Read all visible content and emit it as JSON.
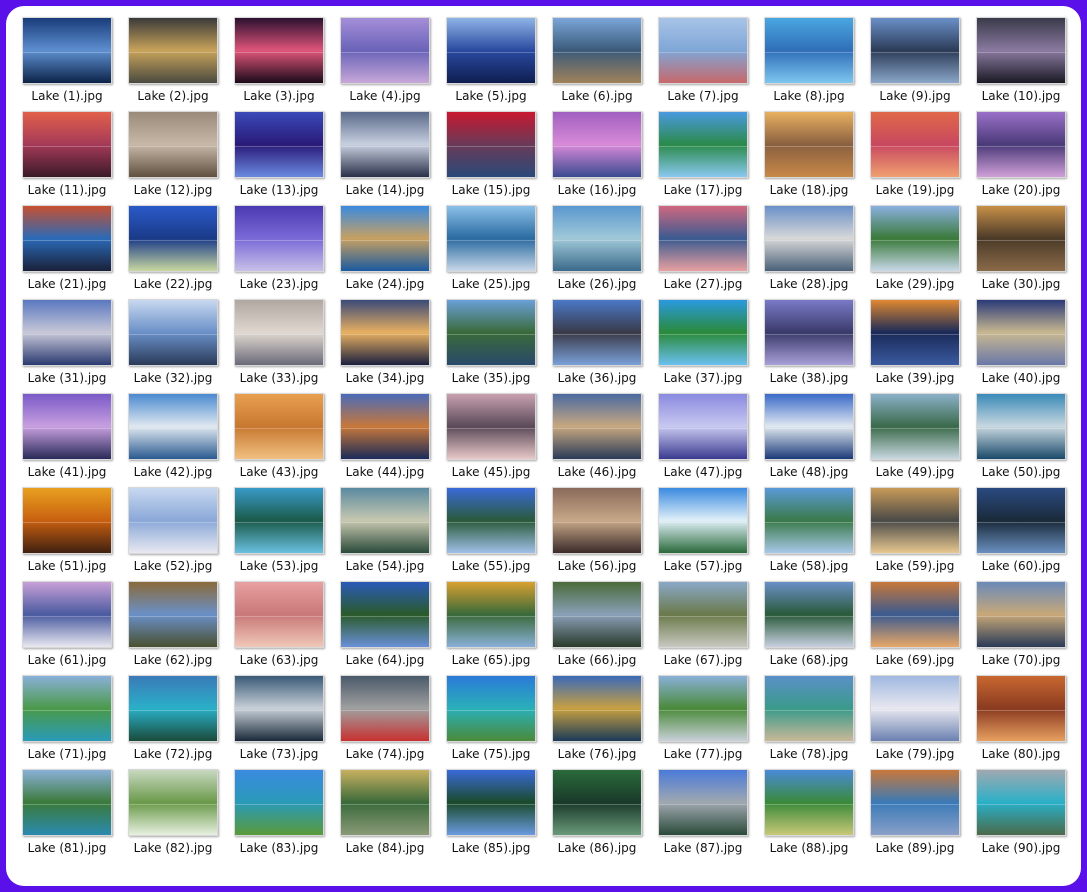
{
  "files": [
    {
      "name": "Lake (1).jpg",
      "colors": [
        "#1a3c7a",
        "#5d8fd0",
        "#0c2348"
      ]
    },
    {
      "name": "Lake (2).jpg",
      "colors": [
        "#3a3a3a",
        "#c8a35a",
        "#4a4a40"
      ]
    },
    {
      "name": "Lake (3).jpg",
      "colors": [
        "#2b1030",
        "#e0557a",
        "#1a0a18"
      ]
    },
    {
      "name": "Lake (4).jpg",
      "colors": [
        "#a58ed8",
        "#6a63b8",
        "#c7a7d8"
      ]
    },
    {
      "name": "Lake (5).jpg",
      "colors": [
        "#8fb4e6",
        "#2a4aa0",
        "#0e1e50"
      ]
    },
    {
      "name": "Lake (6).jpg",
      "colors": [
        "#7aa6d8",
        "#3b5a7a",
        "#a0825a"
      ]
    },
    {
      "name": "Lake (7).jpg",
      "colors": [
        "#a8c4e8",
        "#7fa6d6",
        "#c8686a"
      ]
    },
    {
      "name": "Lake (8).jpg",
      "colors": [
        "#4aa6e0",
        "#2f6fb8",
        "#7ec6f0"
      ]
    },
    {
      "name": "Lake (9).jpg",
      "colors": [
        "#6a8fc8",
        "#2c3c58",
        "#8aa6c8"
      ]
    },
    {
      "name": "Lake (10).jpg",
      "colors": [
        "#3a3a4a",
        "#8a7aa0",
        "#1a1a24"
      ]
    },
    {
      "name": "Lake (11).jpg",
      "colors": [
        "#e2604a",
        "#a53a58",
        "#3a1a28"
      ]
    },
    {
      "name": "Lake (12).jpg",
      "colors": [
        "#9a8a7a",
        "#c8b8a8",
        "#605040"
      ]
    },
    {
      "name": "Lake (13).jpg",
      "colors": [
        "#3a4ab8",
        "#2a1a78",
        "#6a8ae0"
      ]
    },
    {
      "name": "Lake (14).jpg",
      "colors": [
        "#5a6a8a",
        "#c8d0e0",
        "#2a3048"
      ]
    },
    {
      "name": "Lake (15).jpg",
      "colors": [
        "#c81830",
        "#6a3a58",
        "#2a4a78"
      ]
    },
    {
      "name": "Lake (16).jpg",
      "colors": [
        "#a060c0",
        "#d88ad8",
        "#3a4a90"
      ]
    },
    {
      "name": "Lake (17).jpg",
      "colors": [
        "#4a9ae0",
        "#2a8a4a",
        "#8ac8f0"
      ]
    },
    {
      "name": "Lake (18).jpg",
      "colors": [
        "#e8b060",
        "#8a6040",
        "#c88848"
      ]
    },
    {
      "name": "Lake (19).jpg",
      "colors": [
        "#e06848",
        "#c84860",
        "#f0a070"
      ]
    },
    {
      "name": "Lake (20).jpg",
      "colors": [
        "#9a70c8",
        "#4a3a78",
        "#d0a0d8"
      ]
    },
    {
      "name": "Lake (21).jpg",
      "colors": [
        "#c85030",
        "#2a6ab8",
        "#1a2038"
      ]
    },
    {
      "name": "Lake (22).jpg",
      "colors": [
        "#2a5ac8",
        "#1a3a88",
        "#c8d8a0"
      ]
    },
    {
      "name": "Lake (23).jpg",
      "colors": [
        "#4a3ab0",
        "#7a6ad8",
        "#c8c0e8"
      ]
    },
    {
      "name": "Lake (24).jpg",
      "colors": [
        "#3a8ae0",
        "#c8a060",
        "#1a5aa0"
      ]
    },
    {
      "name": "Lake (25).jpg",
      "colors": [
        "#8ac0e8",
        "#2a6aa0",
        "#c8d8e8"
      ]
    },
    {
      "name": "Lake (26).jpg",
      "colors": [
        "#5a98d0",
        "#a0c8d8",
        "#3a6a8a"
      ]
    },
    {
      "name": "Lake (27).jpg",
      "colors": [
        "#d06880",
        "#3a5a90",
        "#e8a0a0"
      ]
    },
    {
      "name": "Lake (28).jpg",
      "colors": [
        "#6a90c8",
        "#d8d8d8",
        "#4a6078"
      ]
    },
    {
      "name": "Lake (29).jpg",
      "colors": [
        "#8ab0e0",
        "#3a7a3a",
        "#c8d8e8"
      ]
    },
    {
      "name": "Lake (30).jpg",
      "colors": [
        "#c89048",
        "#4a3a28",
        "#8a6a48"
      ]
    },
    {
      "name": "Lake (31).jpg",
      "colors": [
        "#5a78c0",
        "#c8c8d8",
        "#2a3a70"
      ]
    },
    {
      "name": "Lake (32).jpg",
      "colors": [
        "#c8d8f0",
        "#6a90c8",
        "#2a3a58"
      ]
    },
    {
      "name": "Lake (33).jpg",
      "colors": [
        "#b0a8a0",
        "#e0d8d0",
        "#6a6a78"
      ]
    },
    {
      "name": "Lake (34).jpg",
      "colors": [
        "#3a4a78",
        "#e8b060",
        "#1a2040"
      ]
    },
    {
      "name": "Lake (35).jpg",
      "colors": [
        "#6aa0d8",
        "#3a6a3a",
        "#2a4a6a"
      ]
    },
    {
      "name": "Lake (36).jpg",
      "colors": [
        "#4a78c8",
        "#3a3a48",
        "#7aa0d8"
      ]
    },
    {
      "name": "Lake (37).jpg",
      "colors": [
        "#2a9ae0",
        "#2a8a3a",
        "#6ac0f0"
      ]
    },
    {
      "name": "Lake (38).jpg",
      "colors": [
        "#7a7ac8",
        "#3a3a6a",
        "#a8a0d8"
      ]
    },
    {
      "name": "Lake (39).jpg",
      "colors": [
        "#e08830",
        "#1a2a58",
        "#3a5aa0"
      ]
    },
    {
      "name": "Lake (40).jpg",
      "colors": [
        "#2a3a78",
        "#c8b890",
        "#6a78a8"
      ]
    },
    {
      "name": "Lake (41).jpg",
      "colors": [
        "#7a5ac8",
        "#c8a0e0",
        "#2a2a58"
      ]
    },
    {
      "name": "Lake (42).jpg",
      "colors": [
        "#4a8ad0",
        "#e0e8f0",
        "#2a5a90"
      ]
    },
    {
      "name": "Lake (43).jpg",
      "colors": [
        "#e8a050",
        "#c87830",
        "#f0c080"
      ]
    },
    {
      "name": "Lake (44).jpg",
      "colors": [
        "#4a6ab8",
        "#c8783a",
        "#1a2a58"
      ]
    },
    {
      "name": "Lake (45).jpg",
      "colors": [
        "#c8a0b0",
        "#5a4a58",
        "#e8c8c8"
      ]
    },
    {
      "name": "Lake (46).jpg",
      "colors": [
        "#4a6aa0",
        "#c8a880",
        "#2a3a58"
      ]
    },
    {
      "name": "Lake (47).jpg",
      "colors": [
        "#8a8ae0",
        "#c8c8f0",
        "#3a3a90"
      ]
    },
    {
      "name": "Lake (48).jpg",
      "colors": [
        "#3a6ac8",
        "#e0e8f0",
        "#1a3a78"
      ]
    },
    {
      "name": "Lake (49).jpg",
      "colors": [
        "#8ab0c8",
        "#3a6a4a",
        "#c8d8e0"
      ]
    },
    {
      "name": "Lake (50).jpg",
      "colors": [
        "#3a8ab8",
        "#c8d8e0",
        "#1a4a6a"
      ]
    },
    {
      "name": "Lake (51).jpg",
      "colors": [
        "#e8a020",
        "#c86010",
        "#402010"
      ]
    },
    {
      "name": "Lake (52).jpg",
      "colors": [
        "#c8d8f0",
        "#8aa8d8",
        "#e8e8f0"
      ]
    },
    {
      "name": "Lake (53).jpg",
      "colors": [
        "#3a9ac8",
        "#1a5a4a",
        "#6ac0e0"
      ]
    },
    {
      "name": "Lake (54).jpg",
      "colors": [
        "#5a8aa0",
        "#c8c8b0",
        "#2a4a3a"
      ]
    },
    {
      "name": "Lake (55).jpg",
      "colors": [
        "#3a6ad8",
        "#2a5a3a",
        "#a0c0e8"
      ]
    },
    {
      "name": "Lake (56).jpg",
      "colors": [
        "#8a6a5a",
        "#c8a888",
        "#3a2a2a"
      ]
    },
    {
      "name": "Lake (57).jpg",
      "colors": [
        "#3a8ae0",
        "#e0f0f8",
        "#2a6a3a"
      ]
    },
    {
      "name": "Lake (58).jpg",
      "colors": [
        "#5a9ad8",
        "#3a7a4a",
        "#a8c8e8"
      ]
    },
    {
      "name": "Lake (59).jpg",
      "colors": [
        "#c89a58",
        "#4a4a48",
        "#e8c890"
      ]
    },
    {
      "name": "Lake (60).jpg",
      "colors": [
        "#2a4a80",
        "#1a2a3a",
        "#6a90c0"
      ]
    },
    {
      "name": "Lake (61).jpg",
      "colors": [
        "#c8a0d8",
        "#4a5aa0",
        "#e8e8f0"
      ]
    },
    {
      "name": "Lake (62).jpg",
      "colors": [
        "#8a6a3a",
        "#6a90c8",
        "#4a5030"
      ]
    },
    {
      "name": "Lake (63).jpg",
      "colors": [
        "#e8a0a0",
        "#c87878",
        "#f0c8b8"
      ]
    },
    {
      "name": "Lake (64).jpg",
      "colors": [
        "#2a5ab8",
        "#2a5a2a",
        "#6a90d8"
      ]
    },
    {
      "name": "Lake (65).jpg",
      "colors": [
        "#d8a030",
        "#3a6a3a",
        "#8ab0d8"
      ]
    },
    {
      "name": "Lake (66).jpg",
      "colors": [
        "#4a6a3a",
        "#8aa0b8",
        "#2a3a2a"
      ]
    },
    {
      "name": "Lake (67).jpg",
      "colors": [
        "#8aa8c8",
        "#6a7a4a",
        "#c8c8c0"
      ]
    },
    {
      "name": "Lake (68).jpg",
      "colors": [
        "#6a90c8",
        "#2a5a3a",
        "#c8d0e0"
      ]
    },
    {
      "name": "Lake (69).jpg",
      "colors": [
        "#c8783a",
        "#3a5a90",
        "#e8a868"
      ]
    },
    {
      "name": "Lake (70).jpg",
      "colors": [
        "#6a8ab8",
        "#c8a878",
        "#2a3a58"
      ]
    },
    {
      "name": "Lake (71).jpg",
      "colors": [
        "#8ab0d8",
        "#4a9a4a",
        "#2a9ab8"
      ]
    },
    {
      "name": "Lake (72).jpg",
      "colors": [
        "#3a7ab8",
        "#2ab0c8",
        "#1a4a3a"
      ]
    },
    {
      "name": "Lake (73).jpg",
      "colors": [
        "#3a5a78",
        "#c8d0d8",
        "#1a2a3a"
      ]
    },
    {
      "name": "Lake (74).jpg",
      "colors": [
        "#4a5a6a",
        "#a0a0a0",
        "#c83030"
      ]
    },
    {
      "name": "Lake (75).jpg",
      "colors": [
        "#2a7ad8",
        "#2ab0b8",
        "#4a8a3a"
      ]
    },
    {
      "name": "Lake (76).jpg",
      "colors": [
        "#3a6ab8",
        "#c8a040",
        "#1a3a58"
      ]
    },
    {
      "name": "Lake (77).jpg",
      "colors": [
        "#8ab0d8",
        "#4a8a3a",
        "#c8d0d8"
      ]
    },
    {
      "name": "Lake (78).jpg",
      "colors": [
        "#5a90c8",
        "#3a9a8a",
        "#c8b898"
      ]
    },
    {
      "name": "Lake (79).jpg",
      "colors": [
        "#a0b8e0",
        "#e8e8f0",
        "#6a80b0"
      ]
    },
    {
      "name": "Lake (80).jpg",
      "colors": [
        "#c86830",
        "#8a3a20",
        "#e8a060"
      ]
    },
    {
      "name": "Lake (81).jpg",
      "colors": [
        "#8ab0d8",
        "#3a7a3a",
        "#2a8ab0"
      ]
    },
    {
      "name": "Lake (82).jpg",
      "colors": [
        "#c8d8c0",
        "#6a9a4a",
        "#e8f0e0"
      ]
    },
    {
      "name": "Lake (83).jpg",
      "colors": [
        "#3a8ae0",
        "#2a9ab8",
        "#5a9a3a"
      ]
    },
    {
      "name": "Lake (84).jpg",
      "colors": [
        "#c8b060",
        "#3a6a3a",
        "#8a9a78"
      ]
    },
    {
      "name": "Lake (85).jpg",
      "colors": [
        "#3a6ad8",
        "#1a4a2a",
        "#6a9ae0"
      ]
    },
    {
      "name": "Lake (86).jpg",
      "colors": [
        "#2a6a3a",
        "#1a3a2a",
        "#6a9a7a"
      ]
    },
    {
      "name": "Lake (87).jpg",
      "colors": [
        "#4a7ad8",
        "#a0a8b0",
        "#2a4a3a"
      ]
    },
    {
      "name": "Lake (88).jpg",
      "colors": [
        "#4a8ad8",
        "#3a8a3a",
        "#c8c878"
      ]
    },
    {
      "name": "Lake (89).jpg",
      "colors": [
        "#c8783a",
        "#3a7ab8",
        "#8aa0c8"
      ]
    },
    {
      "name": "Lake (90).jpg",
      "colors": [
        "#a0a8b0",
        "#2ab0c8",
        "#4a6a4a"
      ]
    }
  ]
}
